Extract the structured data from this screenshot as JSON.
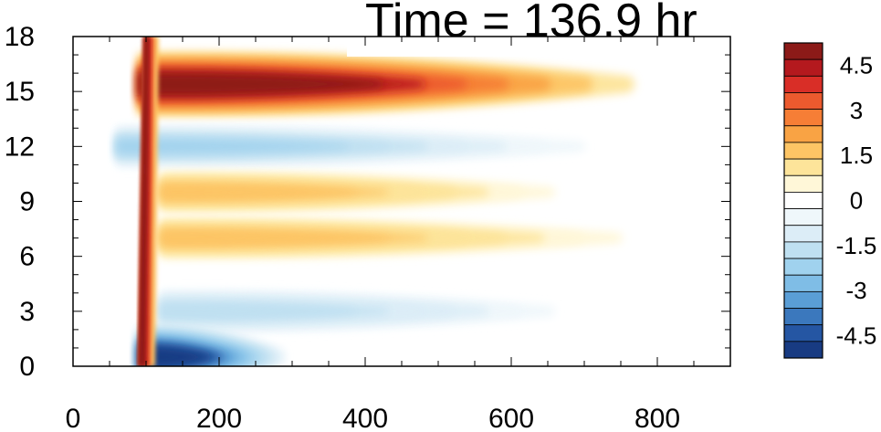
{
  "chart_data": {
    "type": "heatmap",
    "title": "Time = 136.9 hr",
    "xlabel": "",
    "ylabel": "",
    "xlim": [
      0,
      900
    ],
    "ylim": [
      0,
      18
    ],
    "x_ticks": [
      0,
      200,
      400,
      600,
      800
    ],
    "y_ticks": [
      0,
      3,
      6,
      9,
      12,
      15,
      18
    ],
    "x_ticks_label": [
      "0",
      "200",
      "400",
      "600",
      "800"
    ],
    "y_ticks_label": [
      "0",
      "3",
      "6",
      "9",
      "12",
      "15",
      "18"
    ],
    "colorbar": {
      "range": [
        -5.25,
        5.25
      ],
      "levels": [
        -4.5,
        -3.75,
        -3,
        -2.25,
        -1.5,
        -0.75,
        0,
        0.75,
        1.5,
        2.25,
        3,
        3.75,
        4.5
      ],
      "labels": [
        "4.5",
        "3",
        "1.5",
        "0",
        "-1.5",
        "-3",
        "-4.5"
      ],
      "label_values": [
        4.5,
        3,
        1.5,
        0,
        -1.5,
        -3,
        -4.5
      ],
      "colors_top_to_bottom": [
        "#8c1a18",
        "#b4191e",
        "#d92e27",
        "#ec5a2e",
        "#f67e36",
        "#f9a344",
        "#fdc565",
        "#fde49a",
        "#fff7d8",
        "#ffffff",
        "#eff7fb",
        "#dcedf7",
        "#bfe0f1",
        "#a0d2ee",
        "#7fbde6",
        "#5a9ed6",
        "#3b78bd",
        "#2556a3",
        "#183b82"
      ]
    },
    "features": [
      {
        "name": "upper-warm-band",
        "x": [
          90,
          820
        ],
        "y": 15.4,
        "peak": 5.0
      },
      {
        "name": "upper-cool-band",
        "x": [
          60,
          750
        ],
        "y": 12.0,
        "peak": -1.8
      },
      {
        "name": "mid-warm-band-9",
        "x": [
          120,
          700
        ],
        "y": 9.5,
        "peak": 1.6
      },
      {
        "name": "mid-warm-band-6",
        "x": [
          120,
          800
        ],
        "y": 7.0,
        "peak": 1.5
      },
      {
        "name": "low-cool-band",
        "x": [
          120,
          700
        ],
        "y": 3.0,
        "peak": -1.5
      },
      {
        "name": "surface-cold-pool",
        "x": [
          90,
          300
        ],
        "y": 0.5,
        "peak": -5.0
      },
      {
        "name": "vertical-front",
        "x": [
          80,
          100
        ],
        "y": [
          0,
          18
        ],
        "peak": 5.0
      }
    ]
  }
}
